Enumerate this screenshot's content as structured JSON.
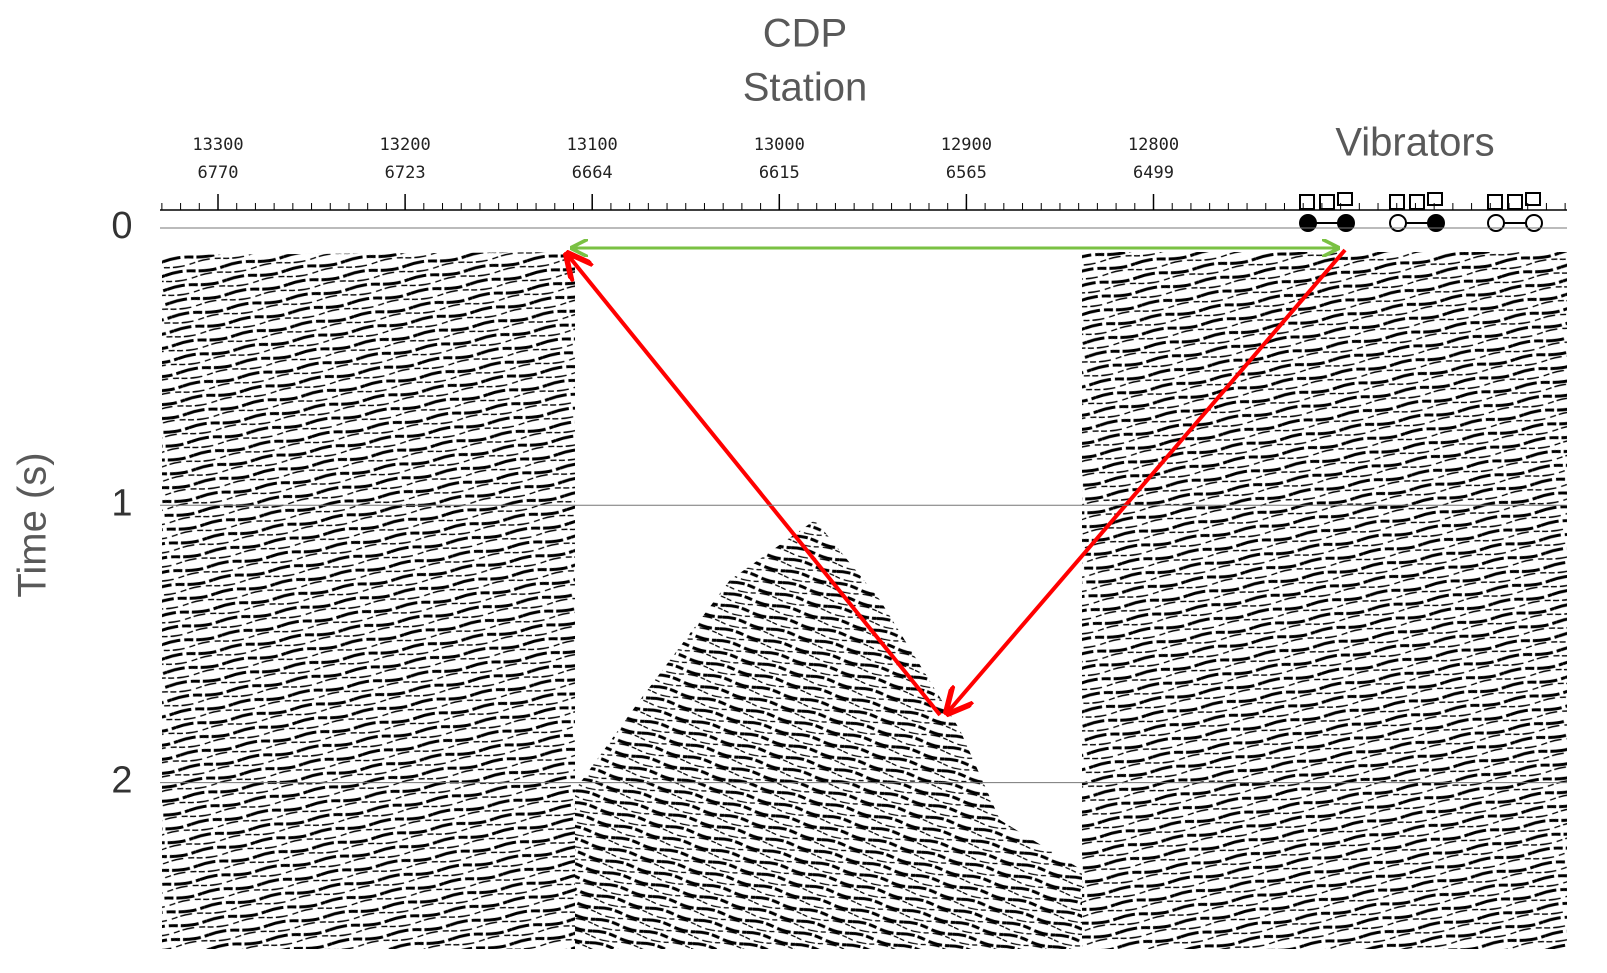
{
  "chart_data": {
    "type": "seismic-section",
    "xlabel": "CDP",
    "x2label": "Station",
    "ylabel": "Time (s)",
    "annotation": "Vibrators",
    "xlim": [
      13331,
      12579
    ],
    "xticks": [
      13300,
      13200,
      13100,
      13000,
      12900,
      12800
    ],
    "station_labels": [
      "6770",
      "6723",
      "6664",
      "6615",
      "6565",
      "6499"
    ],
    "ylim": [
      0,
      2.6
    ],
    "yticks": [
      0,
      1,
      2
    ],
    "grid": true
  }
}
